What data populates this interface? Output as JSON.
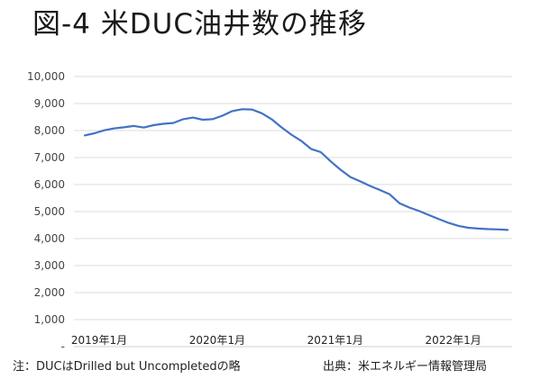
{
  "title": "図-4 米DUC油井数の推移",
  "footer": {
    "note": "注：DUCはDrilled but Uncompletedの略",
    "source": "出典：米エネルギー情報管理局"
  },
  "chart_data": {
    "type": "line",
    "title": "図-4 米DUC油井数の推移",
    "xlabel": "",
    "ylabel": "",
    "ylim": [
      0,
      10000
    ],
    "y_ticks": [
      "-",
      "1,000",
      "2,000",
      "3,000",
      "4,000",
      "5,000",
      "6,000",
      "7,000",
      "8,000",
      "9,000",
      "10,000"
    ],
    "x_tick_labels": [
      {
        "label": "2019年1月",
        "index": 0
      },
      {
        "label": "2020年1月",
        "index": 12
      },
      {
        "label": "2021年1月",
        "index": 24
      },
      {
        "label": "2022年1月",
        "index": 36
      }
    ],
    "grid": true,
    "series": [
      {
        "name": "",
        "color": "#4472c4",
        "values": [
          7820,
          7900,
          8010,
          8080,
          8120,
          8170,
          8110,
          8200,
          8250,
          8280,
          8420,
          8480,
          8400,
          8420,
          8550,
          8720,
          8790,
          8780,
          8640,
          8420,
          8120,
          7850,
          7620,
          7320,
          7200,
          6860,
          6550,
          6280,
          6120,
          5950,
          5800,
          5640,
          5310,
          5150,
          5020,
          4870,
          4720,
          4580,
          4470,
          4400,
          4370,
          4350,
          4340,
          4320
        ]
      }
    ]
  }
}
